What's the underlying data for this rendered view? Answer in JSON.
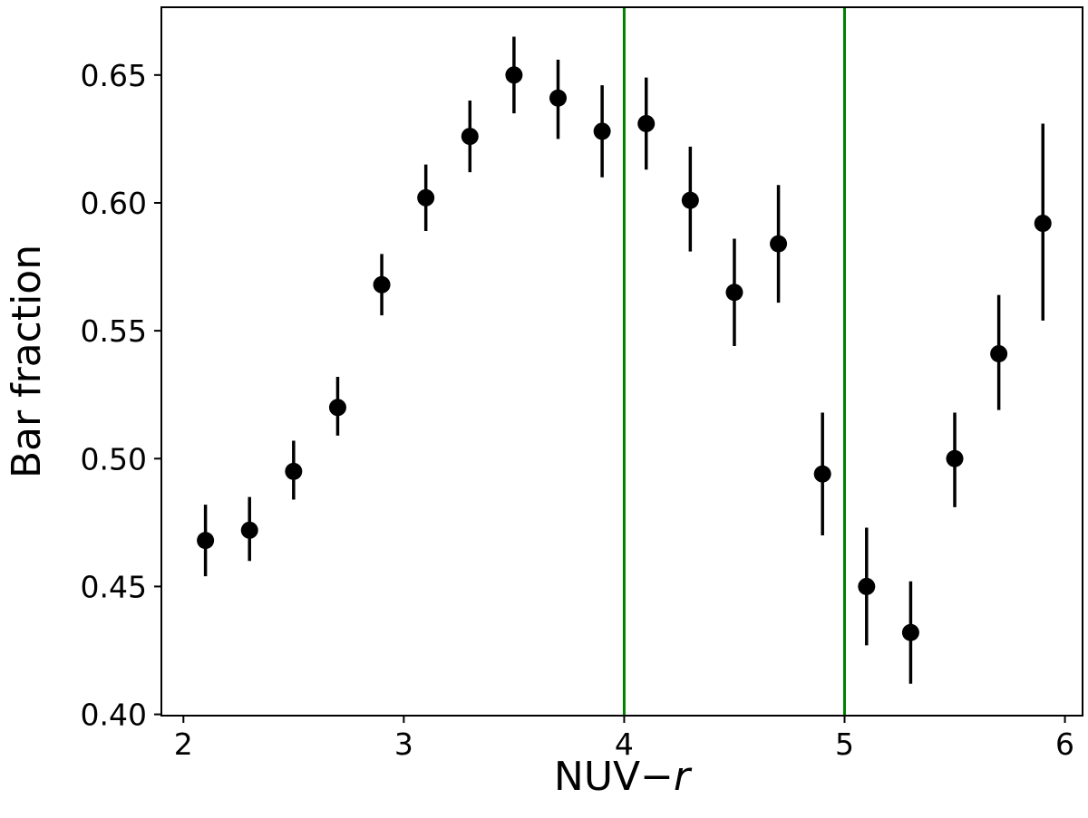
{
  "chart_data": {
    "type": "scatter",
    "xlabel_main": "NUV−",
    "xlabel_italic": "r",
    "ylabel": "Bar fraction",
    "xlim": [
      1.9,
      6.08
    ],
    "ylim": [
      0.3995,
      0.6765
    ],
    "xticks": [
      2,
      3,
      4,
      5,
      6
    ],
    "yticks": [
      0.4,
      0.45,
      0.5,
      0.55,
      0.6,
      0.65
    ],
    "xtick_labels": [
      "2",
      "3",
      "4",
      "5",
      "6"
    ],
    "ytick_labels": [
      "0.40",
      "0.45",
      "0.50",
      "0.55",
      "0.60",
      "0.65"
    ],
    "vlines": [
      4.0,
      5.0
    ],
    "vline_color": "#008000",
    "marker_color": "#000000",
    "points": [
      {
        "x": 2.1,
        "y": 0.468,
        "ylo": 0.454,
        "yhi": 0.482
      },
      {
        "x": 2.3,
        "y": 0.472,
        "ylo": 0.46,
        "yhi": 0.485
      },
      {
        "x": 2.5,
        "y": 0.495,
        "ylo": 0.484,
        "yhi": 0.507
      },
      {
        "x": 2.7,
        "y": 0.52,
        "ylo": 0.509,
        "yhi": 0.532
      },
      {
        "x": 2.9,
        "y": 0.568,
        "ylo": 0.556,
        "yhi": 0.58
      },
      {
        "x": 3.1,
        "y": 0.602,
        "ylo": 0.589,
        "yhi": 0.615
      },
      {
        "x": 3.3,
        "y": 0.626,
        "ylo": 0.612,
        "yhi": 0.64
      },
      {
        "x": 3.5,
        "y": 0.65,
        "ylo": 0.635,
        "yhi": 0.665
      },
      {
        "x": 3.7,
        "y": 0.641,
        "ylo": 0.625,
        "yhi": 0.656
      },
      {
        "x": 3.9,
        "y": 0.628,
        "ylo": 0.61,
        "yhi": 0.646
      },
      {
        "x": 4.1,
        "y": 0.631,
        "ylo": 0.613,
        "yhi": 0.649
      },
      {
        "x": 4.3,
        "y": 0.601,
        "ylo": 0.581,
        "yhi": 0.622
      },
      {
        "x": 4.5,
        "y": 0.565,
        "ylo": 0.544,
        "yhi": 0.586
      },
      {
        "x": 4.7,
        "y": 0.584,
        "ylo": 0.561,
        "yhi": 0.607
      },
      {
        "x": 4.9,
        "y": 0.494,
        "ylo": 0.47,
        "yhi": 0.518
      },
      {
        "x": 5.1,
        "y": 0.45,
        "ylo": 0.427,
        "yhi": 0.473
      },
      {
        "x": 5.3,
        "y": 0.432,
        "ylo": 0.412,
        "yhi": 0.452
      },
      {
        "x": 5.5,
        "y": 0.5,
        "ylo": 0.481,
        "yhi": 0.518
      },
      {
        "x": 5.7,
        "y": 0.541,
        "ylo": 0.519,
        "yhi": 0.564
      },
      {
        "x": 5.9,
        "y": 0.592,
        "ylo": 0.554,
        "yhi": 0.631
      }
    ]
  }
}
